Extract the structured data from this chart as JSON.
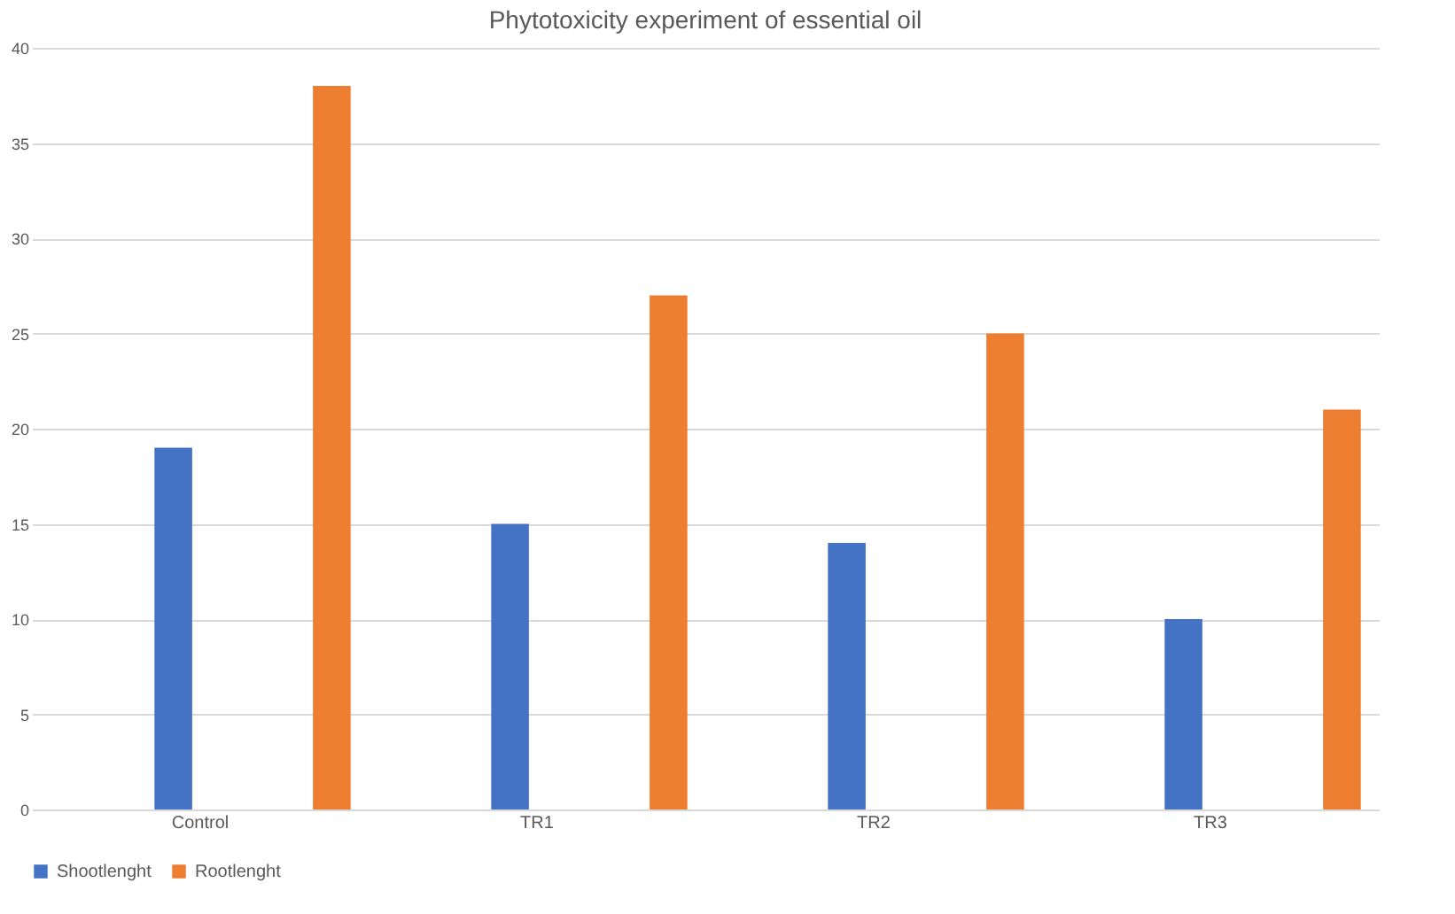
{
  "chart_data": {
    "type": "bar",
    "title": "Phytotoxicity experiment of essential oil",
    "categories": [
      "Control",
      "TR1",
      "TR2",
      "TR3"
    ],
    "series": [
      {
        "name": "Shootlenght",
        "color": "#4472c4",
        "values": [
          19,
          15,
          14,
          10
        ]
      },
      {
        "name": "Rootlenght",
        "color": "#ed7d31",
        "values": [
          38,
          27,
          25,
          21
        ]
      }
    ],
    "ylim": [
      0,
      40
    ],
    "yticks": [
      0,
      5,
      10,
      15,
      20,
      25,
      30,
      35,
      40
    ],
    "grid": "y",
    "legend": "bottom"
  }
}
